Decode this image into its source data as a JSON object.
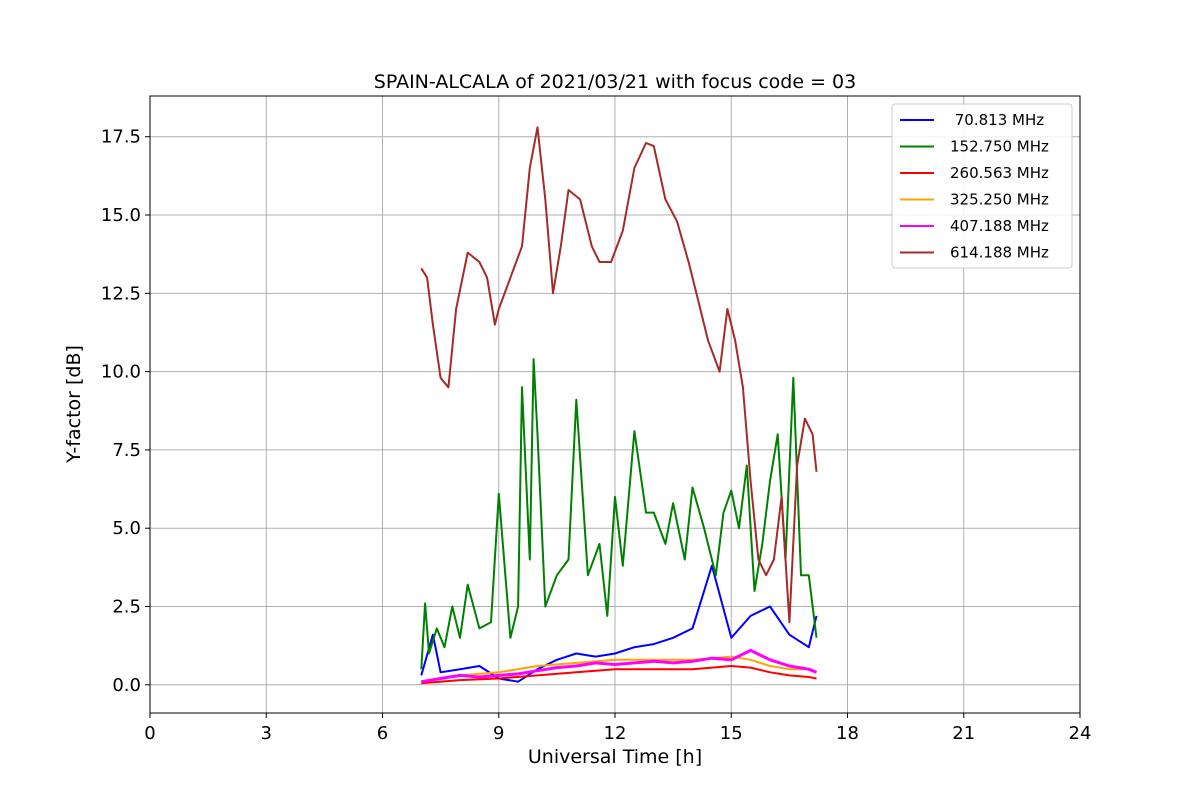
{
  "chart_data": {
    "type": "line",
    "title": "SPAIN-ALCALA of 2021/03/21 with focus code = 03",
    "xlabel": "Universal Time [h]",
    "ylabel": "Y-factor [dB]",
    "xlim": [
      0,
      24
    ],
    "ylim": [
      -0.9,
      18.8
    ],
    "xticks": [
      0,
      3,
      6,
      9,
      12,
      15,
      18,
      21,
      24
    ],
    "xtick_labels": [
      "0",
      "3",
      "6",
      "9",
      "12",
      "15",
      "18",
      "21",
      "24"
    ],
    "yticks": [
      0,
      2.5,
      5,
      7.5,
      10,
      12.5,
      15,
      17.5
    ],
    "ytick_labels": [
      "0.0",
      "2.5",
      "5.0",
      "7.5",
      "10.0",
      "12.5",
      "15.0",
      "17.5"
    ],
    "grid": true,
    "legend_position": "top-right",
    "series": [
      {
        "name": " 70.813 MHz",
        "color": "#0000ff",
        "x": [
          7.0,
          7.3,
          7.5,
          8.0,
          8.5,
          9.0,
          9.5,
          10.0,
          10.5,
          11.0,
          11.5,
          12.0,
          12.5,
          13.0,
          13.5,
          14.0,
          14.5,
          15.0,
          15.5,
          16.0,
          16.5,
          17.0,
          17.2
        ],
        "y": [
          0.3,
          1.6,
          0.4,
          0.5,
          0.6,
          0.2,
          0.1,
          0.5,
          0.8,
          1.0,
          0.9,
          1.0,
          1.2,
          1.3,
          1.5,
          1.8,
          3.8,
          1.5,
          2.2,
          2.5,
          1.6,
          1.2,
          2.2
        ]
      },
      {
        "name": "152.750 MHz",
        "color": "#008000",
        "x": [
          7.0,
          7.1,
          7.2,
          7.4,
          7.6,
          7.8,
          8.0,
          8.2,
          8.5,
          8.8,
          9.0,
          9.3,
          9.5,
          9.6,
          9.8,
          9.9,
          10.0,
          10.2,
          10.5,
          10.8,
          11.0,
          11.3,
          11.6,
          11.8,
          12.0,
          12.2,
          12.5,
          12.8,
          13.0,
          13.3,
          13.5,
          13.8,
          14.0,
          14.3,
          14.6,
          14.8,
          15.0,
          15.2,
          15.4,
          15.6,
          15.8,
          16.0,
          16.2,
          16.4,
          16.6,
          16.8,
          17.0,
          17.2
        ],
        "y": [
          0.5,
          2.6,
          1.0,
          1.8,
          1.2,
          2.5,
          1.5,
          3.2,
          1.8,
          2.0,
          6.1,
          1.5,
          2.5,
          9.5,
          4.0,
          10.4,
          8.0,
          2.5,
          3.5,
          4.0,
          9.1,
          3.5,
          4.5,
          2.2,
          6.0,
          3.8,
          8.1,
          5.5,
          5.5,
          4.5,
          5.8,
          4.0,
          6.3,
          5.0,
          3.5,
          5.5,
          6.2,
          5.0,
          7.0,
          3.0,
          4.5,
          6.5,
          8.0,
          4.0,
          9.8,
          3.5,
          3.5,
          1.5
        ]
      },
      {
        "name": "260.563 MHz",
        "color": "#ff0000",
        "x": [
          7.0,
          8.0,
          9.0,
          10.0,
          11.0,
          12.0,
          13.0,
          14.0,
          15.0,
          15.5,
          16.0,
          16.5,
          17.0,
          17.2
        ],
        "y": [
          0.05,
          0.15,
          0.2,
          0.3,
          0.4,
          0.5,
          0.5,
          0.5,
          0.6,
          0.55,
          0.4,
          0.3,
          0.25,
          0.2
        ]
      },
      {
        "name": "325.250 MHz",
        "color": "#ffa500",
        "x": [
          7.0,
          8.0,
          9.0,
          10.0,
          11.0,
          12.0,
          13.0,
          14.0,
          15.0,
          15.5,
          16.0,
          16.5,
          17.0,
          17.2
        ],
        "y": [
          0.1,
          0.3,
          0.4,
          0.6,
          0.7,
          0.8,
          0.8,
          0.8,
          0.9,
          0.8,
          0.6,
          0.5,
          0.5,
          0.4
        ]
      },
      {
        "name": "407.188 MHz",
        "color": "#ff00ff",
        "x": [
          7.0,
          7.5,
          8.0,
          8.5,
          9.0,
          9.5,
          10.0,
          10.5,
          11.0,
          11.5,
          12.0,
          12.5,
          13.0,
          13.5,
          14.0,
          14.5,
          15.0,
          15.5,
          16.0,
          16.5,
          17.0,
          17.2
        ],
        "y": [
          0.1,
          0.2,
          0.3,
          0.25,
          0.3,
          0.35,
          0.45,
          0.55,
          0.6,
          0.7,
          0.65,
          0.7,
          0.75,
          0.7,
          0.75,
          0.85,
          0.8,
          1.1,
          0.8,
          0.6,
          0.5,
          0.4
        ]
      },
      {
        "name": "614.188 MHz",
        "color": "#a52a2a",
        "x": [
          7.0,
          7.15,
          7.3,
          7.5,
          7.7,
          7.9,
          8.2,
          8.5,
          8.7,
          8.9,
          9.0,
          9.3,
          9.6,
          9.8,
          10.0,
          10.2,
          10.4,
          10.6,
          10.8,
          11.1,
          11.4,
          11.6,
          11.9,
          12.2,
          12.5,
          12.8,
          13.0,
          13.3,
          13.6,
          13.9,
          14.1,
          14.4,
          14.7,
          14.9,
          15.1,
          15.3,
          15.5,
          15.7,
          15.9,
          16.1,
          16.3,
          16.5,
          16.7,
          16.9,
          17.1,
          17.2
        ],
        "y": [
          13.3,
          13.0,
          11.5,
          9.8,
          9.5,
          12.0,
          13.8,
          13.5,
          13.0,
          11.5,
          12.0,
          13.0,
          14.0,
          16.5,
          17.8,
          15.5,
          12.5,
          14.0,
          15.8,
          15.5,
          14.0,
          13.5,
          13.5,
          14.5,
          16.5,
          17.3,
          17.2,
          15.5,
          14.8,
          13.5,
          12.5,
          11.0,
          10.0,
          12.0,
          11.0,
          9.5,
          6.5,
          4.0,
          3.5,
          4.0,
          6.0,
          2.0,
          7.0,
          8.5,
          8.0,
          6.8
        ]
      }
    ]
  }
}
